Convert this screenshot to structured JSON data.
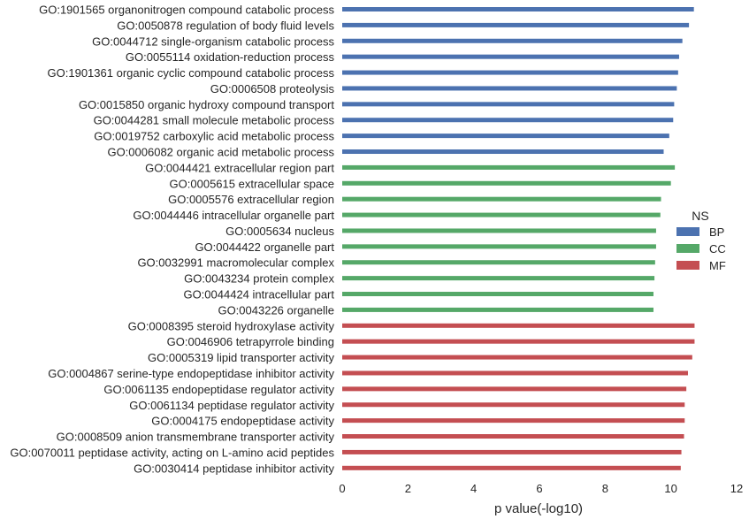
{
  "chart_data": {
    "type": "bar",
    "orientation": "horizontal",
    "title": "",
    "xlabel": "p value(-log10)",
    "ylabel": "",
    "xlim": [
      0,
      12
    ],
    "xticks": [
      "0",
      "2",
      "4",
      "6",
      "8",
      "10",
      "12"
    ],
    "grid": false,
    "legend": {
      "title": "NS",
      "placement": "right",
      "entries": [
        {
          "name": "BP",
          "color": "#4c72b0"
        },
        {
          "name": "CC",
          "color": "#55a868"
        },
        {
          "name": "MF",
          "color": "#c44e52"
        }
      ]
    },
    "categories": [
      "GO:1901565 organonitrogen compound catabolic process",
      "GO:0050878 regulation of body fluid levels",
      "GO:0044712 single-organism catabolic process",
      "GO:0055114 oxidation-reduction process",
      "GO:1901361 organic cyclic compound catabolic process",
      "GO:0006508 proteolysis",
      "GO:0015850 organic hydroxy compound transport",
      "GO:0044281 small molecule metabolic process",
      "GO:0019752 carboxylic acid metabolic process",
      "GO:0006082 organic acid metabolic process",
      "GO:0044421 extracellular region part",
      "GO:0005615 extracellular space",
      "GO:0005576 extracellular region",
      "GO:0044446 intracellular organelle part",
      "GO:0005634 nucleus",
      "GO:0044422 organelle part",
      "GO:0032991 macromolecular complex",
      "GO:0043234 protein complex",
      "GO:0044424 intracellular part",
      "GO:0043226 organelle",
      "GO:0008395 steroid hydroxylase activity",
      "GO:0046906 tetrapyrrole binding",
      "GO:0005319 lipid transporter activity",
      "GO:0004867 serine-type endopeptidase inhibitor activity",
      "GO:0061135 endopeptidase regulator activity",
      "GO:0061134 peptidase regulator activity",
      "GO:0004175 endopeptidase activity",
      "GO:0008509 anion transmembrane transporter activity",
      "GO:0070011 peptidase activity, acting on L-amino acid peptides",
      "GO:0030414 peptidase inhibitor activity"
    ],
    "values": [
      10.7,
      10.55,
      10.35,
      10.25,
      10.22,
      10.18,
      10.1,
      10.07,
      9.95,
      9.78,
      10.12,
      10.0,
      9.7,
      9.68,
      9.55,
      9.55,
      9.52,
      9.5,
      9.47,
      9.47,
      10.72,
      10.72,
      10.65,
      10.52,
      10.47,
      10.42,
      10.42,
      10.4,
      10.32,
      10.3
    ],
    "groups": [
      "BP",
      "BP",
      "BP",
      "BP",
      "BP",
      "BP",
      "BP",
      "BP",
      "BP",
      "BP",
      "CC",
      "CC",
      "CC",
      "CC",
      "CC",
      "CC",
      "CC",
      "CC",
      "CC",
      "CC",
      "MF",
      "MF",
      "MF",
      "MF",
      "MF",
      "MF",
      "MF",
      "MF",
      "MF",
      "MF"
    ]
  }
}
